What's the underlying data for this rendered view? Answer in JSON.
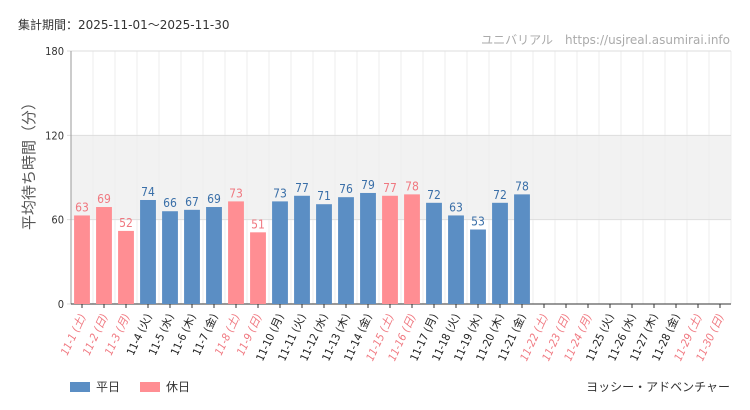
{
  "header": {
    "period": "集計期間：2025-11-01〜2025-11-30",
    "site": "ユニバリアル　https://usjreal.asumirai.info"
  },
  "legend": {
    "weekday_label": "平日",
    "holiday_label": "休日"
  },
  "attraction_name": "ヨッシー・アドベンチャー",
  "chart_data": {
    "type": "bar",
    "title": "",
    "xlabel": "",
    "ylabel": "平均待ち時間（分）",
    "ylim": [
      0,
      180
    ],
    "yticks": [
      0,
      60,
      120,
      180
    ],
    "colors": {
      "weekday": "#5b8ec4",
      "holiday": "#ff8e93",
      "weekday_label": "#3a6fa8",
      "holiday_label": "#f07880",
      "band": "#f2f2f2",
      "grid": "#dddddd"
    },
    "categories": [
      "11-1 (土)",
      "11-2 (日)",
      "11-3 (月)",
      "11-4 (火)",
      "11-5 (水)",
      "11-6 (木)",
      "11-7 (金)",
      "11-8 (土)",
      "11-9 (日)",
      "11-10 (月)",
      "11-11 (火)",
      "11-12 (水)",
      "11-13 (木)",
      "11-14 (金)",
      "11-15 (土)",
      "11-16 (日)",
      "11-17 (月)",
      "11-18 (火)",
      "11-19 (水)",
      "11-20 (木)",
      "11-21 (金)",
      "11-22 (土)",
      "11-23 (日)",
      "11-24 (月)",
      "11-25 (火)",
      "11-26 (水)",
      "11-27 (木)",
      "11-28 (金)",
      "11-29 (土)",
      "11-30 (日)"
    ],
    "values": [
      63,
      69,
      52,
      74,
      66,
      67,
      69,
      73,
      51,
      73,
      77,
      71,
      76,
      79,
      77,
      78,
      72,
      63,
      53,
      72,
      78,
      null,
      null,
      null,
      null,
      null,
      null,
      null,
      null,
      null
    ],
    "day_type": [
      "holiday",
      "holiday",
      "holiday",
      "weekday",
      "weekday",
      "weekday",
      "weekday",
      "holiday",
      "holiday",
      "weekday",
      "weekday",
      "weekday",
      "weekday",
      "weekday",
      "holiday",
      "holiday",
      "weekday",
      "weekday",
      "weekday",
      "weekday",
      "weekday",
      "holiday",
      "holiday",
      "holiday",
      "weekday",
      "weekday",
      "weekday",
      "weekday",
      "holiday",
      "holiday"
    ]
  }
}
